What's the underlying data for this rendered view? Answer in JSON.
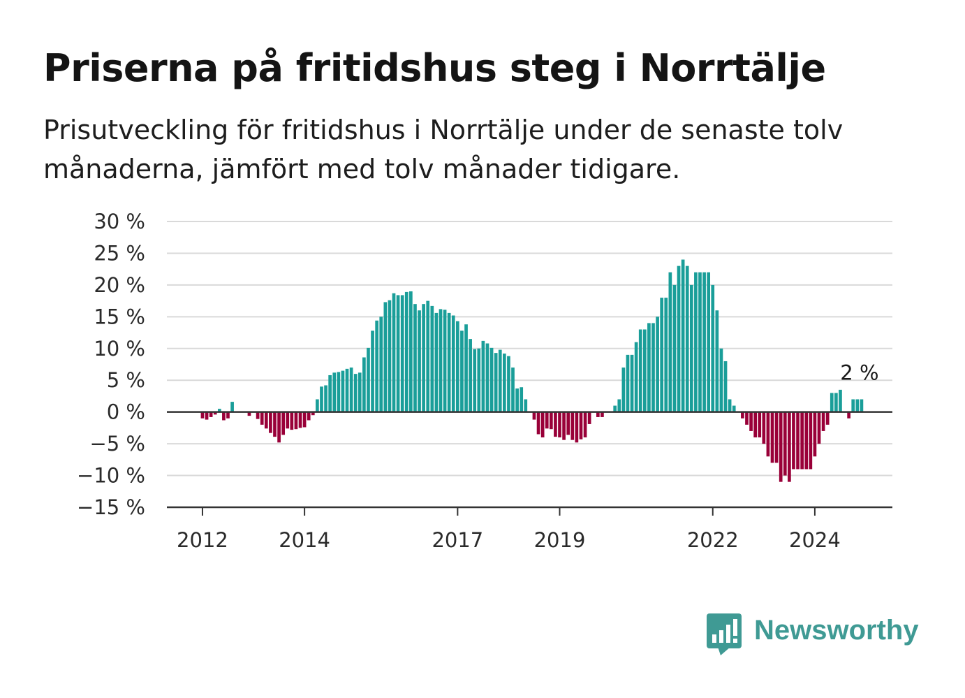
{
  "title": "Priserna på fritidshus steg i Norrtälje",
  "subtitle": "Prisutveckling för fritidshus i Norrtälje under de senaste tolv månaderna, jämfört med tolv månader tidigare.",
  "brand": {
    "name": "Newsworthy",
    "color": "#3f9a94",
    "icon": "bar-chart-speech-bubble-icon"
  },
  "colors": {
    "positive": "#1a9e99",
    "negative": "#990038",
    "grid": "#d9d9d9",
    "axis": "#333333"
  },
  "chart_data": {
    "type": "bar",
    "title": "Priserna på fritidshus steg i Norrtälje",
    "xlabel": "",
    "ylabel": "",
    "ylim": [
      -15,
      30
    ],
    "yticks": [
      30,
      25,
      20,
      15,
      10,
      5,
      0,
      -5,
      -10,
      -15
    ],
    "ytick_labels": [
      "30 %",
      "25 %",
      "20 %",
      "15 %",
      "10 %",
      "5 %",
      "0 %",
      "−5 %",
      "−10 %",
      "−15 %"
    ],
    "xticks": [
      "2012",
      "2014",
      "2017",
      "2019",
      "2022",
      "2024"
    ],
    "x_start": "2011-09",
    "frequency": "monthly",
    "grid": true,
    "annotation": {
      "text": "2 %",
      "value": 2
    },
    "values": [
      0,
      0,
      0,
      0,
      -1,
      -1.2,
      -0.8,
      -0.4,
      0.5,
      -1.3,
      -1,
      1.6,
      0,
      0,
      0,
      -0.6,
      0,
      -1.1,
      -2,
      -2.6,
      -3.3,
      -3.9,
      -4.8,
      -3.6,
      -2.6,
      -2.8,
      -2.7,
      -2.5,
      -2.4,
      -1.3,
      -0.5,
      2,
      4,
      4.2,
      5.8,
      6.2,
      6.3,
      6.5,
      6.8,
      7,
      6,
      6.2,
      8.6,
      10.1,
      12.8,
      14.4,
      15,
      17.3,
      17.6,
      18.7,
      18.4,
      18.4,
      18.9,
      19,
      17,
      16,
      17,
      17.5,
      16.7,
      15.6,
      16.2,
      16.1,
      15.6,
      15.2,
      14.3,
      12.8,
      13.8,
      11.5,
      9.9,
      10,
      11.2,
      10.8,
      10.1,
      9.3,
      9.8,
      9.2,
      8.8,
      7,
      3.7,
      3.9,
      2,
      0,
      -1.2,
      -3.5,
      -4,
      -2.6,
      -2.7,
      -3.9,
      -4,
      -4.4,
      -3.6,
      -4.4,
      -4.8,
      -4.3,
      -4,
      -1.9,
      0,
      -0.8,
      -0.8,
      0,
      0,
      1,
      2,
      7,
      9,
      9,
      11,
      13,
      13,
      14,
      14,
      15,
      18,
      18,
      22,
      20,
      23,
      24,
      23,
      20,
      22,
      22,
      22,
      22,
      20,
      16,
      10,
      8,
      2,
      1,
      0,
      -1,
      -2,
      -3,
      -4,
      -4,
      -5,
      -7,
      -8,
      -8,
      -11,
      -10,
      -11,
      -9,
      -9,
      -9,
      -9,
      -9,
      -7,
      -5,
      -3,
      -2,
      3,
      3,
      3.5,
      0,
      -1,
      2,
      2,
      2
    ]
  }
}
